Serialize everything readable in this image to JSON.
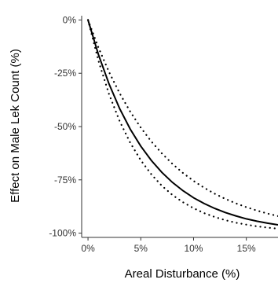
{
  "chart_data": {
    "type": "line",
    "title": "",
    "xlabel": "Areal Disturbance (%)",
    "ylabel": "Effect on Male Lek Count (%)",
    "xlim": [
      -0.6,
      18.0
    ],
    "ylim": [
      -102,
      2
    ],
    "x_ticks": [
      0,
      5,
      10,
      15
    ],
    "x_tick_labels": [
      "0%",
      "5%",
      "10%",
      "15%"
    ],
    "y_ticks": [
      0,
      -25,
      -50,
      -75,
      -100
    ],
    "y_tick_labels": [
      "0%",
      "-25%",
      "-50%",
      "-75%",
      "-100%"
    ],
    "grid": false,
    "legend": "none",
    "series": [
      {
        "style": "solid",
        "x": [
          0,
          1,
          2,
          3,
          4,
          5,
          6,
          7,
          8,
          9,
          10,
          11,
          12,
          13,
          14,
          15,
          16,
          17,
          18
        ],
        "y": [
          0,
          -16.4,
          -30.1,
          -41.6,
          -51.2,
          -59.2,
          -65.9,
          -71.5,
          -76.2,
          -80.1,
          -83.4,
          -86.1,
          -88.4,
          -90.3,
          -91.9,
          -93.3,
          -94.4,
          -95.3,
          -96.1
        ]
      },
      {
        "style": "dotted",
        "x": [
          0,
          1,
          2,
          3,
          4,
          5,
          6,
          7,
          8,
          9,
          10,
          11,
          12,
          13,
          14,
          15,
          16,
          17,
          18
        ],
        "y": [
          0,
          -19.3,
          -34.9,
          -47.5,
          -57.6,
          -65.8,
          -72.4,
          -77.8,
          -82.1,
          -85.5,
          -88.3,
          -90.6,
          -92.4,
          -93.9,
          -95.1,
          -96.0,
          -96.8,
          -97.4,
          -97.9
        ]
      },
      {
        "style": "dotted",
        "x": [
          0,
          1,
          2,
          3,
          4,
          5,
          6,
          7,
          8,
          9,
          10,
          11,
          12,
          13,
          14,
          15,
          16,
          17,
          18
        ],
        "y": [
          0,
          -13.1,
          -24.5,
          -34.4,
          -43.0,
          -50.5,
          -57.0,
          -62.6,
          -67.5,
          -71.8,
          -75.5,
          -78.7,
          -81.5,
          -83.9,
          -86.0,
          -87.8,
          -89.4,
          -90.8,
          -92.0
        ]
      }
    ],
    "colors": {
      "line": "#000000",
      "axis": "#333333",
      "text": "#000000"
    }
  }
}
